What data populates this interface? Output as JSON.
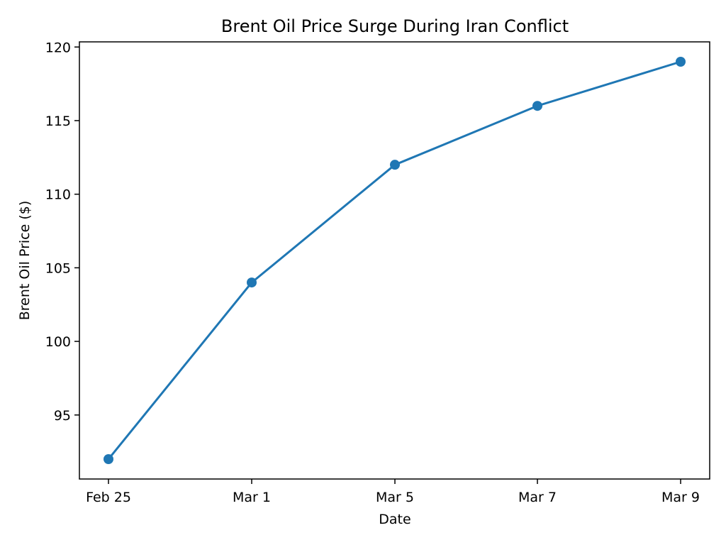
{
  "chart_data": {
    "type": "line",
    "title": "Brent Oil Price Surge During Iran Conflict",
    "xlabel": "Date",
    "ylabel": "Brent Oil Price ($)",
    "categories": [
      "Feb 25",
      "Mar 1",
      "Mar 5",
      "Mar 7",
      "Mar 9"
    ],
    "series": [
      {
        "values": [
          92,
          104,
          112,
          116,
          119
        ],
        "color": "#1f77b4",
        "marker": "circle"
      }
    ],
    "yticks": [
      95,
      100,
      105,
      110,
      115,
      120
    ],
    "ylim": [
      90.65,
      120.35
    ],
    "grid": false,
    "legend": "none"
  }
}
